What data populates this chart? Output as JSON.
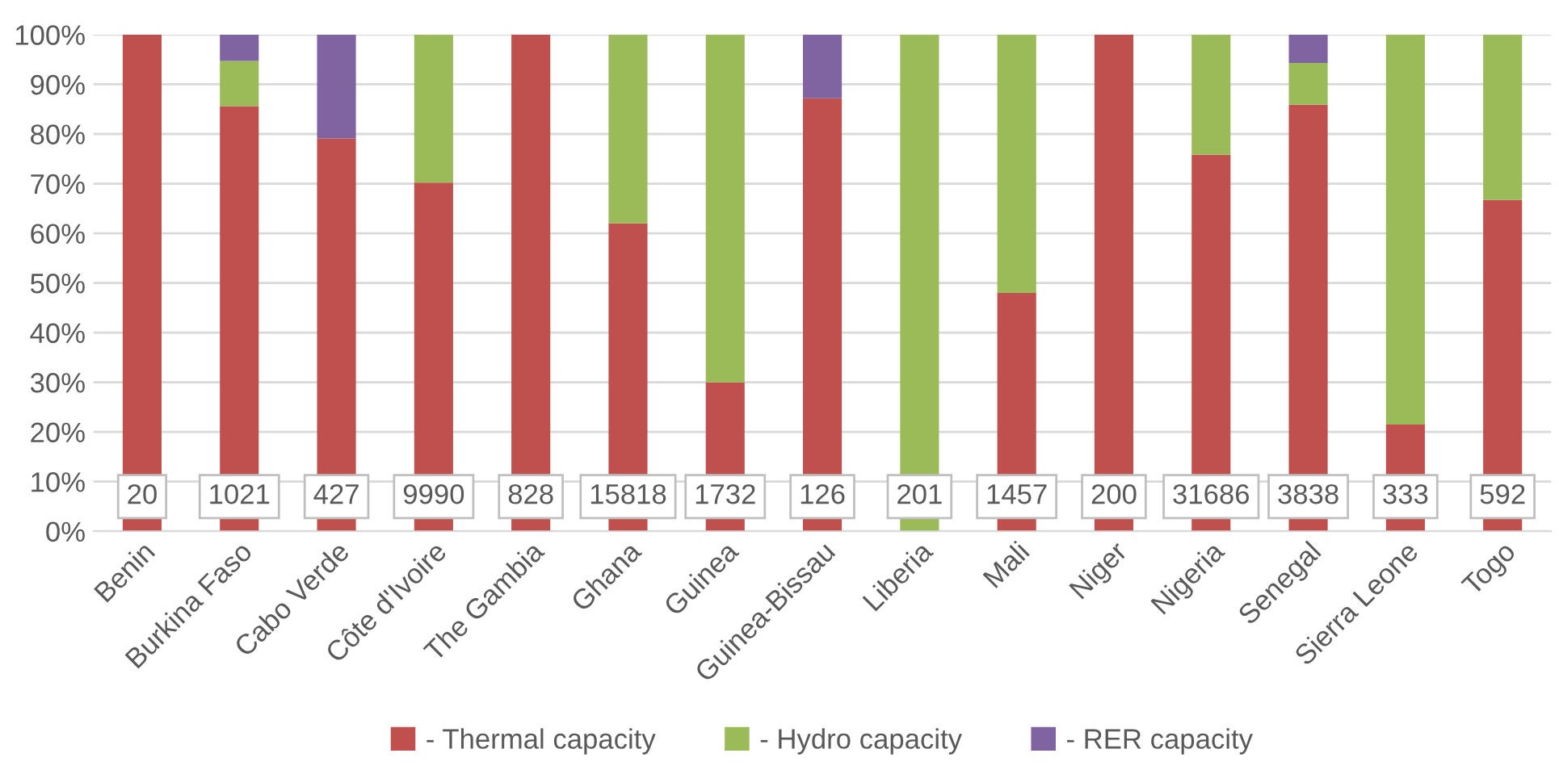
{
  "chart_data": {
    "type": "bar",
    "stacked": true,
    "categories": [
      "Benin",
      "Burkina Faso",
      "Cabo Verde",
      "Côte d'Ivoire",
      "The Gambia",
      "Ghana",
      "Guinea",
      "Guinea-Bissau",
      "Liberia",
      "Mali",
      "Niger",
      "Nigeria",
      "Senegal",
      "Sierra Leone",
      "Togo"
    ],
    "series": [
      {
        "name": "- Thermal capacity",
        "color": "#c0504d",
        "values": [
          100,
          85.6,
          79.1,
          70.2,
          100,
          62,
          30,
          87.2,
          0,
          48,
          100,
          75.8,
          85.9,
          21.5,
          66.7
        ]
      },
      {
        "name": "- Hydro capacity",
        "color": "#9bbb59",
        "values": [
          0,
          9.1,
          0,
          29.8,
          0,
          38,
          70,
          0,
          100,
          52,
          0,
          24.2,
          8.4,
          78.5,
          33.3
        ]
      },
      {
        "name": "- RER capacity",
        "color": "#8064a2",
        "values": [
          0,
          5.3,
          20.9,
          0,
          0,
          0,
          0,
          12.8,
          0,
          0,
          0,
          0,
          5.7,
          0,
          0
        ]
      }
    ],
    "ylim": [
      0,
      100
    ],
    "yticks": [
      {
        "value": 0,
        "label": "0%"
      },
      {
        "value": 10,
        "label": "10%"
      },
      {
        "value": 20,
        "label": "20%"
      },
      {
        "value": 30,
        "label": "30%"
      },
      {
        "value": 40,
        "label": "40%"
      },
      {
        "value": 50,
        "label": "50%"
      },
      {
        "value": 60,
        "label": "60%"
      },
      {
        "value": 70,
        "label": "70%"
      },
      {
        "value": 80,
        "label": "80%"
      },
      {
        "value": 90,
        "label": "90%"
      },
      {
        "value": 100,
        "label": "100%"
      }
    ],
    "grid": "y",
    "legend": "bottom",
    "annotations": [
      "20",
      "1021",
      "427",
      "9990",
      "828",
      "15818",
      "1732",
      "126",
      "201",
      "1457",
      "200",
      "31686",
      "3838",
      "333",
      "592"
    ]
  }
}
